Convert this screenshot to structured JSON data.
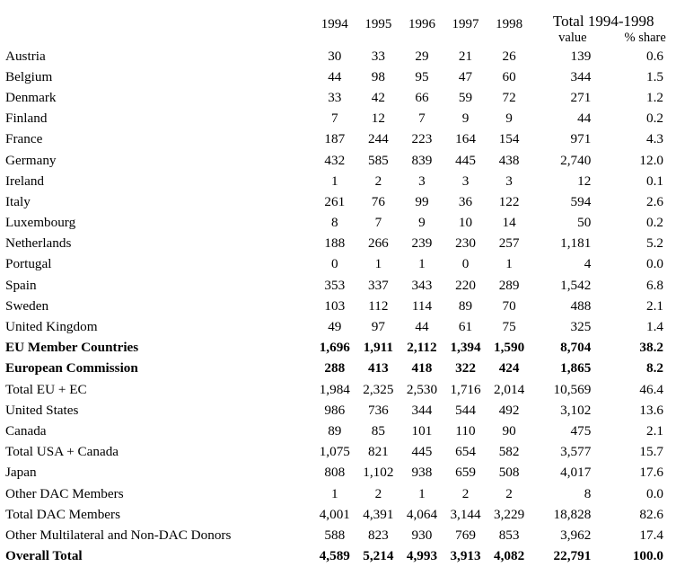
{
  "header": {
    "years": [
      "1994",
      "1995",
      "1996",
      "1997",
      "1998"
    ],
    "total_label": "Total 1994-1998",
    "value_label": "value",
    "share_label": "% share"
  },
  "rows": [
    {
      "label": "Austria",
      "bold": false,
      "y1994": "30",
      "y1995": "33",
      "y1996": "29",
      "y1997": "21",
      "y1998": "26",
      "value": "139",
      "share": "0.6"
    },
    {
      "label": "Belgium",
      "bold": false,
      "y1994": "44",
      "y1995": "98",
      "y1996": "95",
      "y1997": "47",
      "y1998": "60",
      "value": "344",
      "share": "1.5"
    },
    {
      "label": "Denmark",
      "bold": false,
      "y1994": "33",
      "y1995": "42",
      "y1996": "66",
      "y1997": "59",
      "y1998": "72",
      "value": "271",
      "share": "1.2"
    },
    {
      "label": "Finland",
      "bold": false,
      "y1994": "7",
      "y1995": "12",
      "y1996": "7",
      "y1997": "9",
      "y1998": "9",
      "value": "44",
      "share": "0.2"
    },
    {
      "label": "France",
      "bold": false,
      "y1994": "187",
      "y1995": "244",
      "y1996": "223",
      "y1997": "164",
      "y1998": "154",
      "value": "971",
      "share": "4.3"
    },
    {
      "label": "Germany",
      "bold": false,
      "y1994": "432",
      "y1995": "585",
      "y1996": "839",
      "y1997": "445",
      "y1998": "438",
      "value": "2,740",
      "share": "12.0"
    },
    {
      "label": "Ireland",
      "bold": false,
      "y1994": "1",
      "y1995": "2",
      "y1996": "3",
      "y1997": "3",
      "y1998": "3",
      "value": "12",
      "share": "0.1"
    },
    {
      "label": "Italy",
      "bold": false,
      "y1994": "261",
      "y1995": "76",
      "y1996": "99",
      "y1997": "36",
      "y1998": "122",
      "value": "594",
      "share": "2.6"
    },
    {
      "label": "Luxembourg",
      "bold": false,
      "y1994": "8",
      "y1995": "7",
      "y1996": "9",
      "y1997": "10",
      "y1998": "14",
      "value": "50",
      "share": "0.2"
    },
    {
      "label": "Netherlands",
      "bold": false,
      "y1994": "188",
      "y1995": "266",
      "y1996": "239",
      "y1997": "230",
      "y1998": "257",
      "value": "1,181",
      "share": "5.2"
    },
    {
      "label": "Portugal",
      "bold": false,
      "y1994": "0",
      "y1995": "1",
      "y1996": "1",
      "y1997": "0",
      "y1998": "1",
      "value": "4",
      "share": "0.0"
    },
    {
      "label": "Spain",
      "bold": false,
      "y1994": "353",
      "y1995": "337",
      "y1996": "343",
      "y1997": "220",
      "y1998": "289",
      "value": "1,542",
      "share": "6.8"
    },
    {
      "label": "Sweden",
      "bold": false,
      "y1994": "103",
      "y1995": "112",
      "y1996": "114",
      "y1997": "89",
      "y1998": "70",
      "value": "488",
      "share": "2.1"
    },
    {
      "label": "United Kingdom",
      "bold": false,
      "y1994": "49",
      "y1995": "97",
      "y1996": "44",
      "y1997": "61",
      "y1998": "75",
      "value": "325",
      "share": "1.4"
    },
    {
      "label": "EU Member Countries",
      "bold": true,
      "y1994": "1,696",
      "y1995": "1,911",
      "y1996": "2,112",
      "y1997": "1,394",
      "y1998": "1,590",
      "value": "8,704",
      "share": "38.2"
    },
    {
      "label": "European Commission",
      "bold": true,
      "y1994": "288",
      "y1995": "413",
      "y1996": "418",
      "y1997": "322",
      "y1998": "424",
      "value": "1,865",
      "share": "8.2"
    },
    {
      "label": "Total EU + EC",
      "bold": false,
      "y1994": "1,984",
      "y1995": "2,325",
      "y1996": "2,530",
      "y1997": "1,716",
      "y1998": "2,014",
      "value": "10,569",
      "share": "46.4"
    },
    {
      "label": "United States",
      "bold": false,
      "y1994": "986",
      "y1995": "736",
      "y1996": "344",
      "y1997": "544",
      "y1998": "492",
      "value": "3,102",
      "share": "13.6"
    },
    {
      "label": "Canada",
      "bold": false,
      "y1994": "89",
      "y1995": "85",
      "y1996": "101",
      "y1997": "110",
      "y1998": "90",
      "value": "475",
      "share": "2.1"
    },
    {
      "label": "Total USA + Canada",
      "bold": false,
      "y1994": "1,075",
      "y1995": "821",
      "y1996": "445",
      "y1997": "654",
      "y1998": "582",
      "value": "3,577",
      "share": "15.7"
    },
    {
      "label": "Japan",
      "bold": false,
      "y1994": "808",
      "y1995": "1,102",
      "y1996": "938",
      "y1997": "659",
      "y1998": "508",
      "value": "4,017",
      "share": "17.6"
    },
    {
      "label": "Other DAC Members",
      "bold": false,
      "y1994": "1",
      "y1995": "2",
      "y1996": "1",
      "y1997": "2",
      "y1998": "2",
      "value": "8",
      "share": "0.0"
    },
    {
      "label": "Total DAC Members",
      "bold": false,
      "y1994": "4,001",
      "y1995": "4,391",
      "y1996": "4,064",
      "y1997": "3,144",
      "y1998": "3,229",
      "value": "18,828",
      "share": "82.6"
    },
    {
      "label": "Other Multilateral and Non-DAC Donors",
      "bold": false,
      "y1994": "588",
      "y1995": "823",
      "y1996": "930",
      "y1997": "769",
      "y1998": "853",
      "value": "3,962",
      "share": "17.4"
    },
    {
      "label": "Overall Total",
      "bold": true,
      "y1994": "4,589",
      "y1995": "5,214",
      "y1996": "4,993",
      "y1997": "3,913",
      "y1998": "4,082",
      "value": "22,791",
      "share": "100.0"
    }
  ]
}
